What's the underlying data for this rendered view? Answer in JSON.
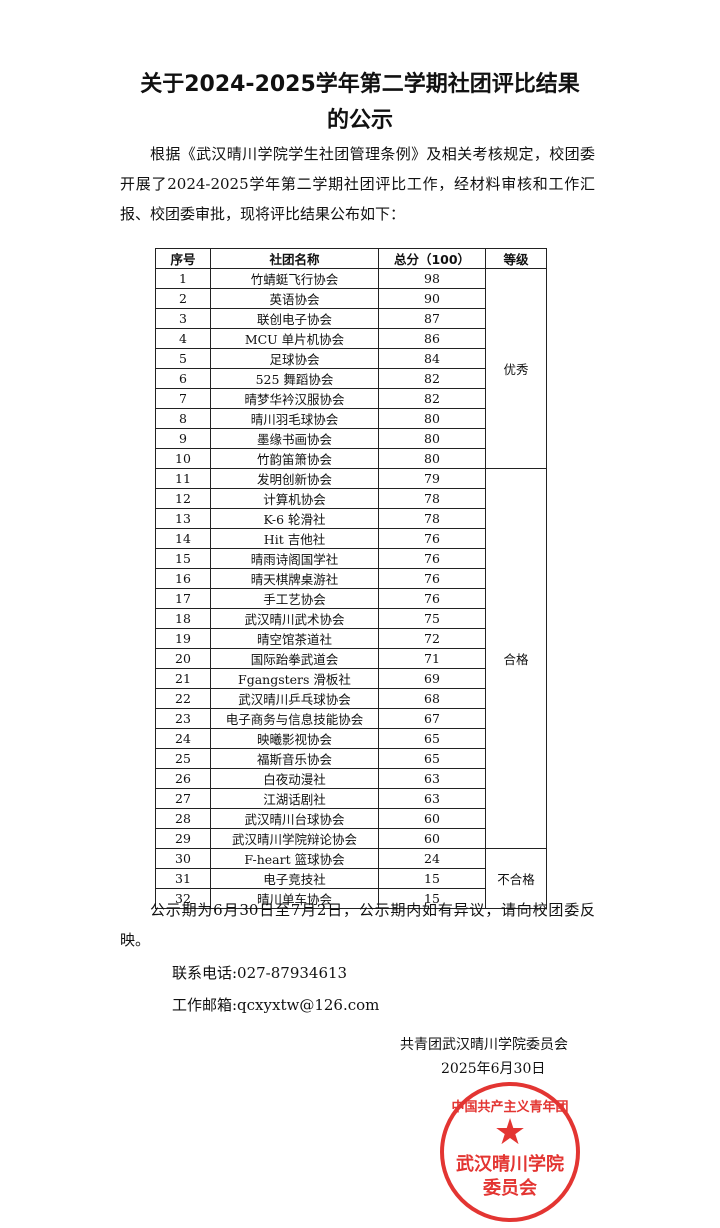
{
  "title_line1": "关于2024-2025学年第二学期社团评比结果",
  "title_line2": "的公示",
  "intro": "根据《武汉晴川学院学生社团管理条例》及相关考核规定，校团委开展了2024-2025学年第二学期社团评比工作，经材料审核和工作汇报、校团委审批，现将评比结果公布如下：",
  "table": {
    "headers": [
      "序号",
      "社团名称",
      "总分（100）",
      "等级"
    ],
    "rows": [
      [
        "1",
        "竹蜻蜓飞行协会",
        "98"
      ],
      [
        "2",
        "英语协会",
        "90"
      ],
      [
        "3",
        "联创电子协会",
        "87"
      ],
      [
        "4",
        "MCU 单片机协会",
        "86"
      ],
      [
        "5",
        "足球协会",
        "84"
      ],
      [
        "6",
        "525 舞蹈协会",
        "82"
      ],
      [
        "7",
        "晴梦华衿汉服协会",
        "82"
      ],
      [
        "8",
        "晴川羽毛球协会",
        "80"
      ],
      [
        "9",
        "墨缘书画协会",
        "80"
      ],
      [
        "10",
        "竹韵笛箫协会",
        "80"
      ],
      [
        "11",
        "发明创新协会",
        "79"
      ],
      [
        "12",
        "计算机协会",
        "78"
      ],
      [
        "13",
        "K-6 轮滑社",
        "78"
      ],
      [
        "14",
        "Hit 吉他社",
        "76"
      ],
      [
        "15",
        "晴雨诗阁国学社",
        "76"
      ],
      [
        "16",
        "晴天棋牌桌游社",
        "76"
      ],
      [
        "17",
        "手工艺协会",
        "76"
      ],
      [
        "18",
        "武汉晴川武术协会",
        "75"
      ],
      [
        "19",
        "晴空馆茶道社",
        "72"
      ],
      [
        "20",
        "国际跆拳武道会",
        "71"
      ],
      [
        "21",
        "Fgangsters 滑板社",
        "69"
      ],
      [
        "22",
        "武汉晴川乒乓球协会",
        "68"
      ],
      [
        "23",
        "电子商务与信息技能协会",
        "67"
      ],
      [
        "24",
        "映曦影视协会",
        "65"
      ],
      [
        "25",
        "福斯音乐协会",
        "65"
      ],
      [
        "26",
        "白夜动漫社",
        "63"
      ],
      [
        "27",
        "江湖话剧社",
        "63"
      ],
      [
        "28",
        "武汉晴川台球协会",
        "60"
      ],
      [
        "29",
        "武汉晴川学院辩论协会",
        "60"
      ],
      [
        "30",
        "F-heart 篮球协会",
        "24"
      ],
      [
        "31",
        "电子竞技社",
        "15"
      ],
      [
        "32",
        "晴川单车协会",
        "15"
      ]
    ],
    "grades": [
      {
        "label": "优秀",
        "count": 10
      },
      {
        "label": "合格",
        "count": 19
      },
      {
        "label": "不合格",
        "count": 3
      }
    ]
  },
  "notice": "公示期为6月30日至7月2日，公示期内如有异议，请向校团委反映。",
  "phone": "联系电话:027-87934613",
  "email": "工作邮箱:qcxyxtw@126.com",
  "signature": "共青团武汉晴川学院委员会",
  "date": "2025年6月30日",
  "stamp": {
    "top": "中国共产主义青年团",
    "middle": "武汉晴川学院",
    "bottom": "委员会",
    "color": "#e0201c"
  }
}
